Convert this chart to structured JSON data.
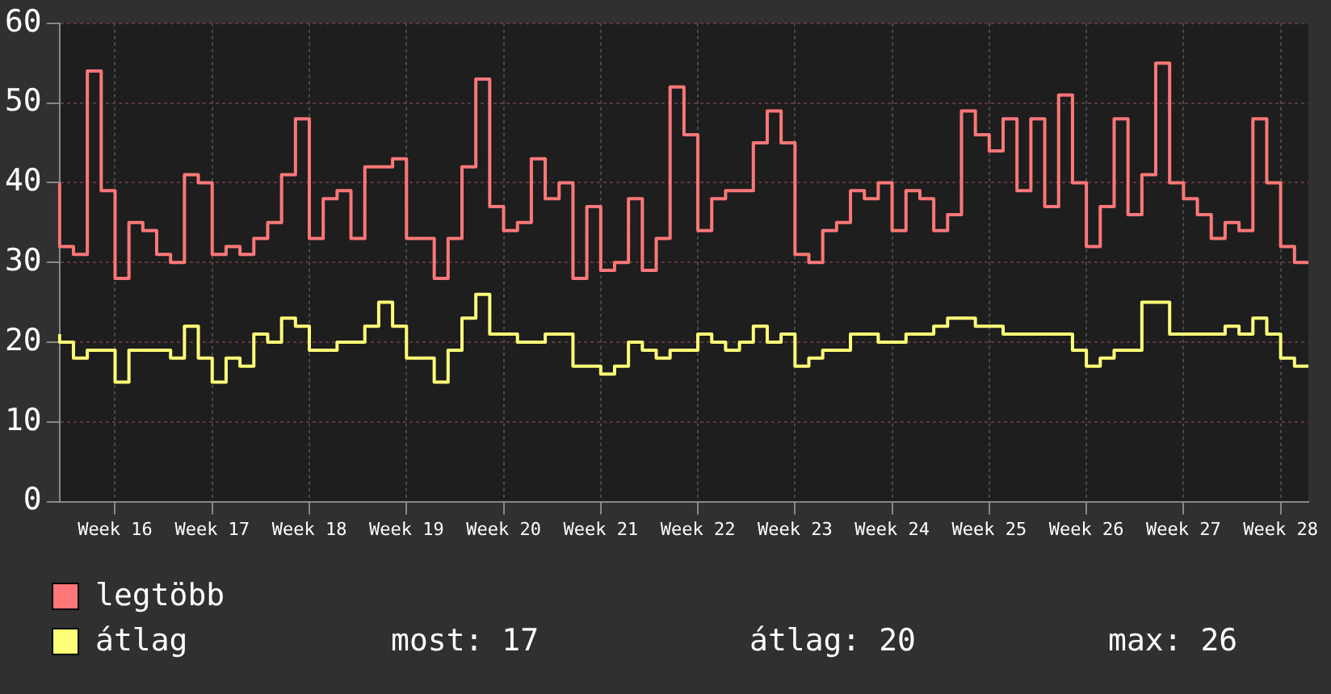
{
  "chart_data": {
    "type": "step",
    "categories": [
      null,
      null,
      null,
      null,
      "Week 16",
      null,
      null,
      null,
      null,
      null,
      null,
      "Week 17",
      null,
      null,
      null,
      null,
      null,
      null,
      "Week 18",
      null,
      null,
      null,
      null,
      null,
      null,
      "Week 19",
      null,
      null,
      null,
      null,
      null,
      null,
      "Week 20",
      null,
      null,
      null,
      null,
      null,
      null,
      "Week 21",
      null,
      null,
      null,
      null,
      null,
      null,
      "Week 22",
      null,
      null,
      null,
      null,
      null,
      null,
      "Week 23",
      null,
      null,
      null,
      null,
      null,
      null,
      "Week 24",
      null,
      null,
      null,
      null,
      null,
      null,
      "Week 25",
      null,
      null,
      null,
      null,
      null,
      null,
      "Week 26",
      null,
      null,
      null,
      null,
      null,
      null,
      "Week 27",
      null,
      null,
      null,
      null,
      null,
      null,
      "Week 28",
      null,
      null
    ],
    "series": [
      {
        "name": "legtöbb",
        "color": "#ff7777",
        "values": [
          40,
          32,
          31,
          54,
          39,
          28,
          35,
          34,
          31,
          30,
          41,
          40,
          31,
          32,
          31,
          33,
          35,
          41,
          48,
          33,
          38,
          39,
          33,
          42,
          42,
          43,
          33,
          33,
          28,
          33,
          42,
          53,
          37,
          34,
          35,
          43,
          38,
          40,
          28,
          37,
          29,
          30,
          38,
          29,
          33,
          52,
          46,
          34,
          38,
          39,
          39,
          45,
          49,
          45,
          31,
          30,
          34,
          35,
          39,
          38,
          40,
          34,
          39,
          38,
          34,
          36,
          49,
          46,
          44,
          48,
          39,
          48,
          37,
          51,
          40,
          32,
          37,
          48,
          36,
          41,
          55,
          40,
          38,
          36,
          33,
          35,
          34,
          48,
          40,
          32,
          30
        ]
      },
      {
        "name": "átlag",
        "color": "#ffff77",
        "values": [
          21,
          20,
          18,
          19,
          19,
          15,
          19,
          19,
          19,
          18,
          22,
          18,
          15,
          18,
          17,
          21,
          20,
          23,
          22,
          19,
          19,
          20,
          20,
          22,
          25,
          22,
          18,
          18,
          15,
          19,
          23,
          26,
          21,
          21,
          20,
          20,
          21,
          21,
          17,
          17,
          16,
          17,
          20,
          19,
          18,
          19,
          19,
          21,
          20,
          19,
          20,
          22,
          20,
          21,
          17,
          18,
          19,
          19,
          21,
          21,
          20,
          20,
          21,
          21,
          22,
          23,
          23,
          22,
          22,
          21,
          21,
          21,
          21,
          21,
          19,
          17,
          18,
          19,
          19,
          25,
          25,
          21,
          21,
          21,
          21,
          22,
          21,
          23,
          21,
          18,
          17
        ]
      }
    ],
    "ylim": [
      0,
      60
    ],
    "yticks": [
      0,
      10,
      20,
      30,
      40,
      50,
      60
    ],
    "grid": true,
    "legend": "bottom left",
    "annotations": [
      "most: 17",
      "átlag: 20",
      "max: 26"
    ]
  }
}
